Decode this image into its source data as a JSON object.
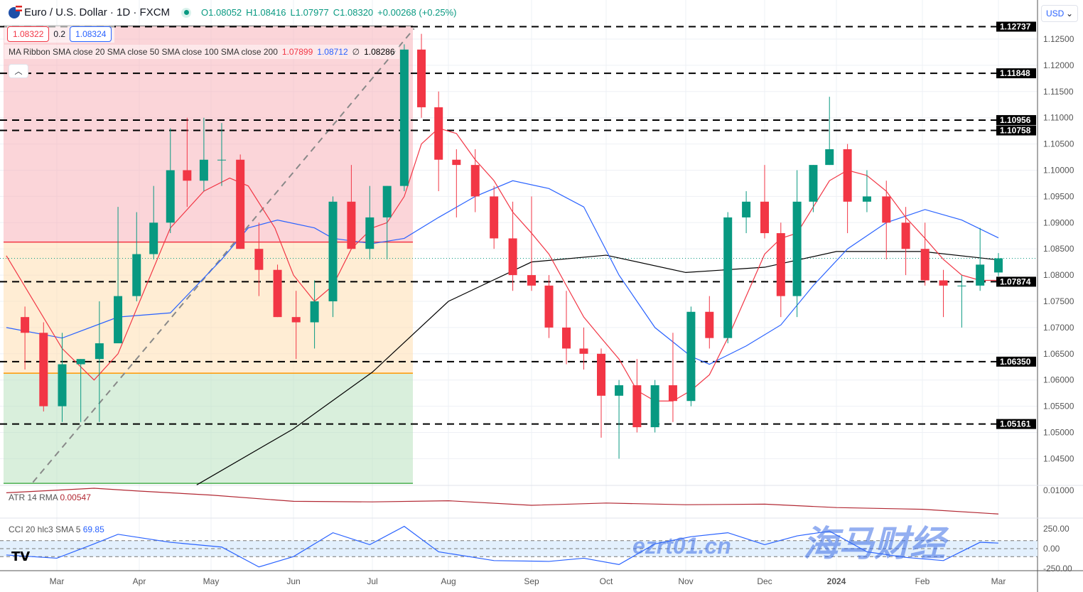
{
  "header": {
    "title": "Euro / U.S. Dollar · 1D · FXCM",
    "open": "O1.08052",
    "high": "H1.08416",
    "low": "L1.07977",
    "close": "C1.08320",
    "change": "+0.00268 (+0.25%)"
  },
  "quote": {
    "sell": "1.08322",
    "spread": "0.2",
    "buy": "1.08324"
  },
  "ribbon": {
    "label": "MA Ribbon SMA close 20 SMA close 50 SMA close 100 SMA close 200",
    "v20": "1.07899",
    "v50": "1.08712",
    "v100": "∅",
    "v200": "1.08286"
  },
  "currency": "USD",
  "atr": {
    "label": "ATR 14 RMA",
    "value": "0.00547",
    "tick": "0.01000"
  },
  "cci": {
    "label": "CCI 20 hlc3 SMA 5",
    "value": "69.85",
    "ticks": [
      "250.00",
      "0.00",
      "-250.00"
    ]
  },
  "watermark": {
    "cn": "海马财经",
    "url": "ezrt01.cn"
  },
  "colors": {
    "up": "#089981",
    "down": "#f23645",
    "sma20": "#f23645",
    "sma50": "#2962ff",
    "sma200": "#000000",
    "atr": "#b22833",
    "cci": "#2962ff"
  },
  "chart_data": {
    "type": "candlestick",
    "title": "Euro / U.S. Dollar · 1D · FXCM",
    "ylim": [
      1.0405,
      1.1275
    ],
    "yticks": [
      1.045,
      1.05,
      1.055,
      1.06,
      1.065,
      1.07,
      1.075,
      1.08,
      1.085,
      1.09,
      1.095,
      1.1,
      1.105,
      1.11,
      1.115,
      1.12,
      1.125
    ],
    "xticks": [
      "Mar",
      "Apr",
      "May",
      "Jun",
      "Jul",
      "Aug",
      "Sep",
      "Oct",
      "Nov",
      "Dec",
      "2024",
      "Feb",
      "Mar"
    ],
    "candles_weekly_ohlc": [
      [
        "2023-02-17",
        1.072,
        1.074,
        1.062,
        1.069
      ],
      [
        "2023-02-24",
        1.069,
        1.071,
        1.054,
        1.055
      ],
      [
        "2023-03-03",
        1.055,
        1.069,
        1.052,
        1.063
      ],
      [
        "2023-03-10",
        1.063,
        1.064,
        1.052,
        1.064
      ],
      [
        "2023-03-17",
        1.064,
        1.075,
        1.052,
        1.067
      ],
      [
        "2023-03-24",
        1.067,
        1.093,
        1.072,
        1.076
      ],
      [
        "2023-03-31",
        1.076,
        1.092,
        1.075,
        1.084
      ],
      [
        "2023-04-07",
        1.084,
        1.097,
        1.083,
        1.09
      ],
      [
        "2023-04-14",
        1.09,
        1.108,
        1.088,
        1.1
      ],
      [
        "2023-04-21",
        1.1,
        1.11,
        1.093,
        1.098
      ],
      [
        "2023-04-28",
        1.098,
        1.11,
        1.096,
        1.102
      ],
      [
        "2023-05-05",
        1.102,
        1.109,
        1.097,
        1.102
      ],
      [
        "2023-05-12",
        1.102,
        1.103,
        1.085,
        1.085
      ],
      [
        "2023-05-19",
        1.085,
        1.09,
        1.076,
        1.081
      ],
      [
        "2023-05-26",
        1.081,
        1.082,
        1.072,
        1.072
      ],
      [
        "2023-06-02",
        1.072,
        1.077,
        1.064,
        1.071
      ],
      [
        "2023-06-09",
        1.071,
        1.079,
        1.066,
        1.075
      ],
      [
        "2023-06-16",
        1.075,
        1.095,
        1.072,
        1.094
      ],
      [
        "2023-06-23",
        1.094,
        1.101,
        1.085,
        1.085
      ],
      [
        "2023-06-30",
        1.085,
        1.097,
        1.083,
        1.091
      ],
      [
        "2023-07-07",
        1.091,
        1.097,
        1.083,
        1.097
      ],
      [
        "2023-07-14",
        1.097,
        1.124,
        1.096,
        1.123
      ],
      [
        "2023-07-21",
        1.123,
        1.126,
        1.11,
        1.112
      ],
      [
        "2023-07-28",
        1.112,
        1.115,
        1.096,
        1.102
      ],
      [
        "2023-08-04",
        1.102,
        1.104,
        1.091,
        1.101
      ],
      [
        "2023-08-11",
        1.101,
        1.104,
        1.092,
        1.095
      ],
      [
        "2023-08-18",
        1.095,
        1.097,
        1.085,
        1.087
      ],
      [
        "2023-08-25",
        1.087,
        1.094,
        1.077,
        1.08
      ],
      [
        "2023-09-01",
        1.08,
        1.095,
        1.077,
        1.078
      ],
      [
        "2023-09-08",
        1.078,
        1.08,
        1.068,
        1.07
      ],
      [
        "2023-09-15",
        1.07,
        1.077,
        1.063,
        1.066
      ],
      [
        "2023-09-22",
        1.066,
        1.07,
        1.062,
        1.065
      ],
      [
        "2023-09-29",
        1.065,
        1.066,
        1.049,
        1.057
      ],
      [
        "2023-10-06",
        1.057,
        1.06,
        1.045,
        1.059
      ],
      [
        "2023-10-13",
        1.059,
        1.064,
        1.05,
        1.051
      ],
      [
        "2023-10-20",
        1.051,
        1.06,
        1.05,
        1.059
      ],
      [
        "2023-10-27",
        1.059,
        1.069,
        1.052,
        1.056
      ],
      [
        "2023-11-03",
        1.056,
        1.074,
        1.055,
        1.073
      ],
      [
        "2023-11-10",
        1.073,
        1.076,
        1.066,
        1.068
      ],
      [
        "2023-11-17",
        1.068,
        1.092,
        1.067,
        1.091
      ],
      [
        "2023-11-24",
        1.091,
        1.096,
        1.088,
        1.094
      ],
      [
        "2023-12-01",
        1.094,
        1.101,
        1.087,
        1.088
      ],
      [
        "2023-12-08",
        1.088,
        1.09,
        1.072,
        1.076
      ],
      [
        "2023-12-15",
        1.076,
        1.1,
        1.072,
        1.094
      ],
      [
        "2023-12-22",
        1.094,
        1.101,
        1.092,
        1.101
      ],
      [
        "2023-12-29",
        1.101,
        1.114,
        1.101,
        1.104
      ],
      [
        "2024-01-05",
        1.104,
        1.105,
        1.088,
        1.094
      ],
      [
        "2024-01-12",
        1.094,
        1.1,
        1.092,
        1.095
      ],
      [
        "2024-01-19",
        1.095,
        1.098,
        1.083,
        1.09
      ],
      [
        "2024-01-26",
        1.09,
        1.093,
        1.08,
        1.085
      ],
      [
        "2024-02-02",
        1.085,
        1.09,
        1.078,
        1.079
      ],
      [
        "2024-02-09",
        1.079,
        1.081,
        1.072,
        1.078
      ],
      [
        "2024-02-16",
        1.078,
        1.08,
        1.07,
        1.078
      ],
      [
        "2024-02-23",
        1.078,
        1.089,
        1.077,
        1.082
      ],
      [
        "2024-03-01",
        1.0805,
        1.0842,
        1.0798,
        1.0832
      ]
    ],
    "sma20": [
      [
        "2023-02-10",
        1.0837
      ],
      [
        "2023-03-03",
        1.066
      ],
      [
        "2023-03-15",
        1.06
      ],
      [
        "2023-03-24",
        1.065
      ],
      [
        "2023-04-03",
        1.077
      ],
      [
        "2023-04-14",
        1.089
      ],
      [
        "2023-04-28",
        1.096
      ],
      [
        "2023-05-08",
        1.0985
      ],
      [
        "2023-05-15",
        1.097
      ],
      [
        "2023-05-25",
        1.089
      ],
      [
        "2023-06-01",
        1.08
      ],
      [
        "2023-06-09",
        1.075
      ],
      [
        "2023-06-16",
        1.078
      ],
      [
        "2023-06-23",
        1.085
      ],
      [
        "2023-07-01",
        1.089
      ],
      [
        "2023-07-07",
        1.09
      ],
      [
        "2023-07-14",
        1.095
      ],
      [
        "2023-07-21",
        1.105
      ],
      [
        "2023-07-28",
        1.108
      ],
      [
        "2023-08-04",
        1.107
      ],
      [
        "2023-08-11",
        1.102
      ],
      [
        "2023-08-18",
        1.098
      ],
      [
        "2023-08-25",
        1.092
      ],
      [
        "2023-09-01",
        1.088
      ],
      [
        "2023-09-08",
        1.084
      ],
      [
        "2023-09-15",
        1.078
      ],
      [
        "2023-09-22",
        1.072
      ],
      [
        "2023-09-29",
        1.068
      ],
      [
        "2023-10-06",
        1.064
      ],
      [
        "2023-10-13",
        1.058
      ],
      [
        "2023-10-20",
        1.056
      ],
      [
        "2023-10-27",
        1.056
      ],
      [
        "2023-11-03",
        1.058
      ],
      [
        "2023-11-10",
        1.061
      ],
      [
        "2023-11-17",
        1.068
      ],
      [
        "2023-11-24",
        1.076
      ],
      [
        "2023-12-01",
        1.084
      ],
      [
        "2023-12-08",
        1.087
      ],
      [
        "2023-12-15",
        1.088
      ],
      [
        "2023-12-22",
        1.093
      ],
      [
        "2023-12-29",
        1.098
      ],
      [
        "2024-01-05",
        1.1
      ],
      [
        "2024-01-12",
        1.099
      ],
      [
        "2024-01-19",
        1.096
      ],
      [
        "2024-01-26",
        1.091
      ],
      [
        "2024-02-02",
        1.087
      ],
      [
        "2024-02-09",
        1.083
      ],
      [
        "2024-02-16",
        1.08
      ],
      [
        "2024-02-23",
        1.079
      ],
      [
        "2024-03-01",
        1.079
      ]
    ],
    "sma50": [
      [
        "2023-02-10",
        1.07
      ],
      [
        "2023-03-03",
        1.068
      ],
      [
        "2023-03-24",
        1.072
      ],
      [
        "2023-04-14",
        1.0728
      ],
      [
        "2023-05-05",
        1.083
      ],
      [
        "2023-05-15",
        1.089
      ],
      [
        "2023-05-26",
        1.0905
      ],
      [
        "2023-06-09",
        1.089
      ],
      [
        "2023-06-16",
        1.087
      ],
      [
        "2023-07-01",
        1.086
      ],
      [
        "2023-07-14",
        1.087
      ],
      [
        "2023-07-28",
        1.091
      ],
      [
        "2023-08-11",
        1.095
      ],
      [
        "2023-08-25",
        1.098
      ],
      [
        "2023-09-08",
        1.0965
      ],
      [
        "2023-09-22",
        1.093
      ],
      [
        "2023-10-06",
        1.08
      ],
      [
        "2023-10-20",
        1.07
      ],
      [
        "2023-11-03",
        1.0645
      ],
      [
        "2023-11-10",
        1.063
      ],
      [
        "2023-11-24",
        1.0665
      ],
      [
        "2023-12-08",
        1.0705
      ],
      [
        "2023-12-22",
        1.078
      ],
      [
        "2024-01-05",
        1.085
      ],
      [
        "2024-01-19",
        1.09
      ],
      [
        "2024-02-02",
        1.0925
      ],
      [
        "2024-02-16",
        1.0905
      ],
      [
        "2024-03-01",
        1.0871
      ]
    ],
    "sma200": [
      [
        "2023-04-25",
        1.04
      ],
      [
        "2023-06-01",
        1.0507
      ],
      [
        "2023-07-01",
        1.0615
      ],
      [
        "2023-08-01",
        1.075
      ],
      [
        "2023-09-01",
        1.0825
      ],
      [
        "2023-10-01",
        1.0838
      ],
      [
        "2023-11-01",
        1.0805
      ],
      [
        "2023-12-01",
        1.0815
      ],
      [
        "2024-01-01",
        1.0845
      ],
      [
        "2024-02-01",
        1.0845
      ],
      [
        "2024-03-01",
        1.0829
      ]
    ],
    "levels": [
      1.12737,
      1.11848,
      1.10956,
      1.10758,
      1.07874,
      1.0635,
      1.05161
    ],
    "last_price": 1.0832,
    "fib_zones": [
      {
        "from": 1.1275,
        "to": 1.0863,
        "color": "#f7b2b9"
      },
      {
        "from": 1.0863,
        "to": 1.0613,
        "color": "#ffdfb0"
      },
      {
        "from": 1.0613,
        "to": 1.0403,
        "color": "#b9e2bf"
      }
    ],
    "fib_lines": [
      {
        "value": 1.0863,
        "color": "#f23645"
      },
      {
        "value": 1.0613,
        "color": "#ff9800"
      },
      {
        "value": 1.0403,
        "color": "#4caf50"
      }
    ],
    "trend_line": [
      [
        "2023-02-20",
        1.0405
      ],
      [
        "2023-07-18",
        1.127
      ]
    ],
    "atr_series": [
      [
        "2023-02-10",
        0.0092
      ],
      [
        "2023-03-15",
        0.01
      ],
      [
        "2023-04-01",
        0.0095
      ],
      [
        "2023-05-01",
        0.0088
      ],
      [
        "2023-06-01",
        0.0077
      ],
      [
        "2023-07-01",
        0.0076
      ],
      [
        "2023-08-01",
        0.0078
      ],
      [
        "2023-09-01",
        0.007
      ],
      [
        "2023-10-01",
        0.0074
      ],
      [
        "2023-11-01",
        0.0071
      ],
      [
        "2023-12-01",
        0.0072
      ],
      [
        "2024-01-01",
        0.0066
      ],
      [
        "2024-02-01",
        0.0063
      ],
      [
        "2024-03-01",
        0.00547
      ]
    ],
    "cci_series": [
      [
        "2023-02-10",
        -80
      ],
      [
        "2023-03-01",
        -120
      ],
      [
        "2023-03-15",
        60
      ],
      [
        "2023-03-24",
        180
      ],
      [
        "2023-04-14",
        80
      ],
      [
        "2023-05-05",
        20
      ],
      [
        "2023-05-19",
        -230
      ],
      [
        "2023-06-01",
        -100
      ],
      [
        "2023-06-16",
        200
      ],
      [
        "2023-06-30",
        50
      ],
      [
        "2023-07-14",
        280
      ],
      [
        "2023-07-28",
        -40
      ],
      [
        "2023-08-18",
        -150
      ],
      [
        "2023-09-08",
        -160
      ],
      [
        "2023-09-22",
        -120
      ],
      [
        "2023-10-06",
        -200
      ],
      [
        "2023-10-20",
        60
      ],
      [
        "2023-11-03",
        150
      ],
      [
        "2023-11-17",
        200
      ],
      [
        "2023-12-01",
        50
      ],
      [
        "2023-12-15",
        160
      ],
      [
        "2023-12-29",
        220
      ],
      [
        "2024-01-12",
        -40
      ],
      [
        "2024-01-26",
        -110
      ],
      [
        "2024-02-09",
        -150
      ],
      [
        "2024-02-23",
        80
      ],
      [
        "2024-03-01",
        69.85
      ]
    ]
  }
}
